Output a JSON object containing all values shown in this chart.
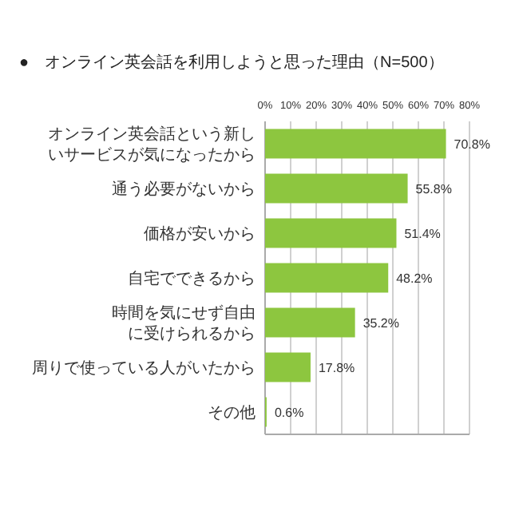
{
  "chart_data": {
    "type": "bar",
    "orientation": "horizontal",
    "title": "●　オンライン英会話を利用しようと思った理由（N=500）",
    "categories": [
      "オンライン英会話という新しいサービスが気になったから",
      "通う必要がないから",
      "価格が安いから",
      "自宅でできるから",
      "時間を気にせず自由に受けられるから",
      "周りで使っている人がいたから",
      "その他"
    ],
    "values": [
      70.8,
      55.8,
      51.4,
      48.2,
      35.2,
      17.8,
      0.6
    ],
    "value_labels": [
      "70.8%",
      "55.8%",
      "51.4%",
      "48.2%",
      "35.2%",
      "17.8%",
      "0.6%"
    ],
    "color": "#8dc63f",
    "xlim": [
      0,
      80
    ],
    "xticks": [
      {
        "value": 0,
        "label": "0%"
      },
      {
        "value": 10,
        "label": "10%"
      },
      {
        "value": 20,
        "label": "20%"
      },
      {
        "value": 30,
        "label": "30%"
      },
      {
        "value": 40,
        "label": "40%"
      },
      {
        "value": 50,
        "label": "50%"
      },
      {
        "value": 60,
        "label": "60%"
      },
      {
        "value": 70,
        "label": "70%"
      },
      {
        "value": 80,
        "label": "80%"
      }
    ],
    "grid": "x"
  }
}
